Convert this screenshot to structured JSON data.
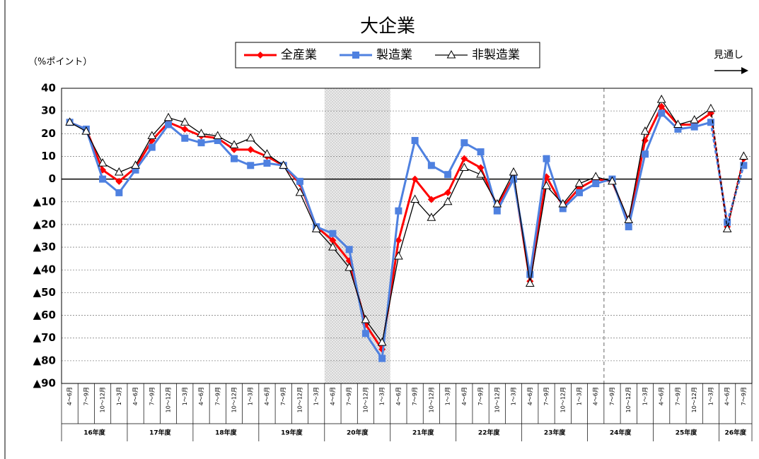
{
  "chart_data": {
    "type": "line",
    "title": "大企業",
    "y_label": "（%ポイント）",
    "annotation": "見通し",
    "categories": [
      "4～6月",
      "7～9月",
      "10～12月",
      "1～3月",
      "4～6月",
      "7～9月",
      "10～12月",
      "1～3月",
      "4～6月",
      "7～9月",
      "10～12月",
      "1～3月",
      "4～6月",
      "7～9月",
      "10～12月",
      "1～3月",
      "4～6月",
      "7～9月",
      "10～12月",
      "1～3月",
      "4～6月",
      "7～9月",
      "10～12月",
      "1～3月",
      "4～6月",
      "7～9月",
      "10～12月",
      "1～3月",
      "4～6月",
      "7～9月",
      "10～12月",
      "1～3月",
      "4～6月",
      "7～9月",
      "10～12月",
      "1～3月",
      "4～6月",
      "7～9月",
      "10～12月",
      "1～3月",
      "4～6月",
      "7～9月"
    ],
    "groups": [
      "16年度",
      "17年度",
      "18年度",
      "19年度",
      "20年度",
      "21年度",
      "22年度",
      "23年度",
      "24年度",
      "25年度",
      "26年度"
    ],
    "series": [
      {
        "name": "全産業",
        "color": "#ff0000",
        "marker": "diamond",
        "values": [
          25,
          22,
          4,
          -1,
          5,
          17,
          25,
          22,
          19,
          18,
          13,
          13,
          10,
          6,
          -2,
          -21,
          -27,
          -36,
          -64,
          -75,
          -27,
          0,
          -9,
          -6,
          9,
          5,
          -12,
          1,
          -45,
          1,
          -12,
          -4,
          0,
          -1,
          -19,
          17,
          32,
          24,
          24,
          29,
          -21,
          9
        ]
      },
      {
        "name": "製造業",
        "color": "#4f81e0",
        "marker": "square",
        "values": [
          25,
          22,
          0,
          -6,
          4,
          14,
          24,
          18,
          16,
          17,
          9,
          6,
          7,
          6,
          -1,
          -21,
          -24,
          -31,
          -68,
          -79,
          -14,
          17,
          6,
          2,
          16,
          12,
          -14,
          0,
          -42,
          9,
          -13,
          -6,
          -2,
          0,
          -21,
          11,
          29,
          22,
          23,
          25,
          -19,
          6
        ]
      },
      {
        "name": "非製造業",
        "color": "#000000",
        "marker": "triangle",
        "values": [
          25,
          21,
          7,
          3,
          6,
          19,
          27,
          25,
          20,
          19,
          15,
          18,
          11,
          6,
          -6,
          -22,
          -30,
          -39,
          -62,
          -72,
          -34,
          -9,
          -17,
          -10,
          5,
          2,
          -11,
          3,
          -46,
          -3,
          -11,
          -2,
          1,
          -1,
          -18,
          21,
          35,
          24,
          26,
          31,
          -22,
          10
        ]
      }
    ],
    "ylim": [
      -90,
      40
    ],
    "yticks": [
      40,
      30,
      20,
      10,
      0,
      {
        "value": -10,
        "label": "▲10"
      },
      {
        "value": -20,
        "label": "▲20"
      },
      {
        "value": -30,
        "label": "▲30"
      },
      {
        "value": -40,
        "label": "▲40"
      },
      {
        "value": -50,
        "label": "▲50"
      },
      {
        "value": -60,
        "label": "▲60"
      },
      {
        "value": -70,
        "label": "▲70"
      },
      {
        "value": -80,
        "label": "▲80"
      },
      {
        "value": -90,
        "label": "▲90"
      }
    ],
    "grid": true,
    "legend": "top"
  }
}
